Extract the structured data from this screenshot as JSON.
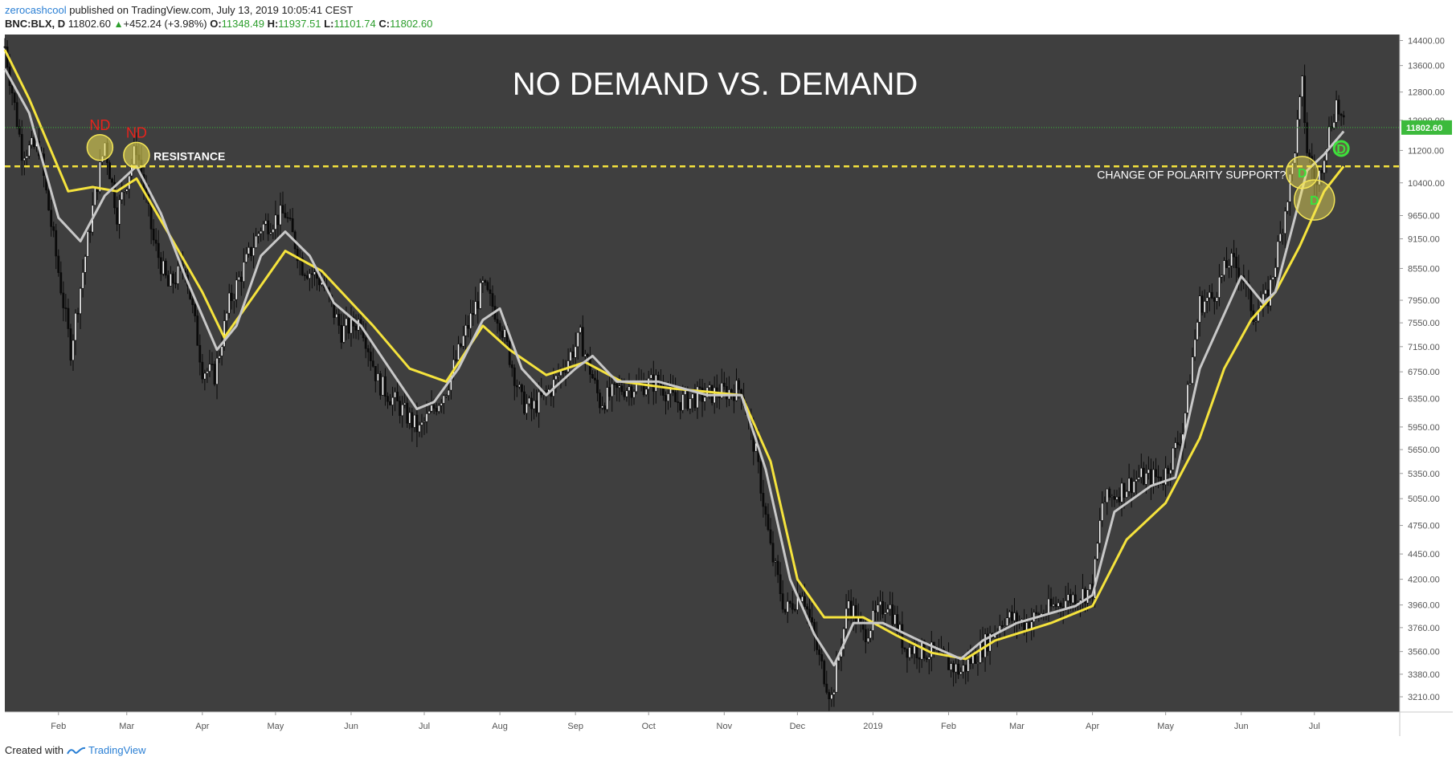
{
  "header": {
    "author": "zerocashcool",
    "published": " published on TradingView.com, July 13, 2019 10:05:41 CEST",
    "symbol": "BNC:BLX, D",
    "last": "11802.60",
    "change": "+452.24 (+3.98%)",
    "o_label": "O:",
    "o_value": "11348.49",
    "h_label": "H:",
    "h_value": "11937.51",
    "l_label": "L:",
    "l_value": "11101.74",
    "c_label": "C:",
    "c_value": "11802.60"
  },
  "footer": {
    "created_with": "Created with",
    "brand": "TradingView"
  },
  "colors": {
    "plot_bg": "#3f3f3f",
    "page_bg": "#ffffff",
    "candle": "#0a0a0a",
    "ema_fast": "#c8c8c8",
    "ema_slow": "#f5e33d",
    "nd_label": "#e8231c",
    "d_label": "#3ce03c",
    "annotation_circle": "#f3e556",
    "price_badge": "#3cba3c"
  },
  "chart_data": {
    "type": "candlestick",
    "title": "NO DEMAND VS. DEMAND",
    "x_range": [
      "2018-01-10",
      "2019-08-05"
    ],
    "y_range": [
      3100,
      14600
    ],
    "y_ticks": [
      "14400.00",
      "13600.00",
      "12800.00",
      "12000.00",
      "11200.00",
      "10400.00",
      "9650.00",
      "9150.00",
      "8550.00",
      "7950.00",
      "7550.00",
      "7150.00",
      "6750.00",
      "6350.00",
      "5950.00",
      "5650.00",
      "5350.00",
      "5050.00",
      "4750.00",
      "4450.00",
      "4200.00",
      "3960.00",
      "3760.00",
      "3560.00",
      "3380.00",
      "3210.00"
    ],
    "x_ticks": [
      {
        "date": "2018-02-01",
        "label": "Feb"
      },
      {
        "date": "2018-03-01",
        "label": "Mar"
      },
      {
        "date": "2018-04-01",
        "label": "Apr"
      },
      {
        "date": "2018-05-01",
        "label": "May"
      },
      {
        "date": "2018-06-01",
        "label": "Jun"
      },
      {
        "date": "2018-07-01",
        "label": "Jul"
      },
      {
        "date": "2018-08-01",
        "label": "Aug"
      },
      {
        "date": "2018-09-01",
        "label": "Sep"
      },
      {
        "date": "2018-10-01",
        "label": "Oct"
      },
      {
        "date": "2018-11-01",
        "label": "Nov"
      },
      {
        "date": "2018-12-01",
        "label": "Dec"
      },
      {
        "date": "2019-01-01",
        "label": "2019"
      },
      {
        "date": "2019-02-01",
        "label": "Feb"
      },
      {
        "date": "2019-03-01",
        "label": "Mar"
      },
      {
        "date": "2019-04-01",
        "label": "Apr"
      },
      {
        "date": "2019-05-01",
        "label": "May"
      },
      {
        "date": "2019-06-01",
        "label": "Jun"
      },
      {
        "date": "2019-07-01",
        "label": "Jul"
      }
    ],
    "price_path": [
      [
        "2018-01-10",
        14200
      ],
      [
        "2018-01-17",
        11200
      ],
      [
        "2018-01-24",
        11300
      ],
      [
        "2018-02-06",
        7100
      ],
      [
        "2018-02-15",
        9800
      ],
      [
        "2018-02-20",
        11400
      ],
      [
        "2018-02-25",
        9700
      ],
      [
        "2018-03-05",
        11300
      ],
      [
        "2018-03-12",
        9100
      ],
      [
        "2018-03-18",
        8200
      ],
      [
        "2018-03-25",
        8600
      ],
      [
        "2018-04-01",
        6800
      ],
      [
        "2018-04-06",
        6700
      ],
      [
        "2018-04-12",
        7900
      ],
      [
        "2018-04-20",
        8800
      ],
      [
        "2018-04-25",
        9400
      ],
      [
        "2018-05-05",
        9700
      ],
      [
        "2018-05-12",
        8600
      ],
      [
        "2018-05-20",
        8300
      ],
      [
        "2018-05-28",
        7400
      ],
      [
        "2018-06-05",
        7600
      ],
      [
        "2018-06-12",
        6600
      ],
      [
        "2018-06-24",
        6100
      ],
      [
        "2018-06-29",
        5900
      ],
      [
        "2018-07-10",
        6500
      ],
      [
        "2018-07-18",
        7400
      ],
      [
        "2018-07-25",
        8200
      ],
      [
        "2018-08-01",
        7600
      ],
      [
        "2018-08-10",
        6300
      ],
      [
        "2018-08-14",
        6200
      ],
      [
        "2018-08-22",
        6500
      ],
      [
        "2018-09-03",
        7300
      ],
      [
        "2018-09-11",
        6300
      ],
      [
        "2018-09-20",
        6500
      ],
      [
        "2018-10-05",
        6600
      ],
      [
        "2018-10-12",
        6300
      ],
      [
        "2018-10-25",
        6400
      ],
      [
        "2018-11-08",
        6500
      ],
      [
        "2018-11-14",
        5600
      ],
      [
        "2018-11-20",
        4500
      ],
      [
        "2018-11-26",
        3900
      ],
      [
        "2018-12-03",
        4100
      ],
      [
        "2018-12-10",
        3500
      ],
      [
        "2018-12-15",
        3200
      ],
      [
        "2018-12-22",
        4000
      ],
      [
        "2018-12-28",
        3700
      ],
      [
        "2019-01-07",
        4000
      ],
      [
        "2019-01-14",
        3600
      ],
      [
        "2019-01-25",
        3550
      ],
      [
        "2019-02-06",
        3400
      ],
      [
        "2019-02-15",
        3600
      ],
      [
        "2019-02-24",
        3850
      ],
      [
        "2019-03-05",
        3800
      ],
      [
        "2019-03-20",
        4000
      ],
      [
        "2019-04-01",
        4100
      ],
      [
        "2019-04-05",
        5000
      ],
      [
        "2019-04-20",
        5300
      ],
      [
        "2019-04-30",
        5300
      ],
      [
        "2019-05-08",
        5900
      ],
      [
        "2019-05-15",
        7900
      ],
      [
        "2019-05-20",
        8000
      ],
      [
        "2019-05-27",
        8700
      ],
      [
        "2019-06-01",
        8500
      ],
      [
        "2019-06-06",
        7700
      ],
      [
        "2019-06-12",
        8000
      ],
      [
        "2019-06-17",
        9200
      ],
      [
        "2019-06-22",
        10800
      ],
      [
        "2019-06-26",
        13000
      ],
      [
        "2019-06-28",
        11200
      ],
      [
        "2019-07-02",
        10300
      ],
      [
        "2019-07-05",
        11200
      ],
      [
        "2019-07-10",
        12500
      ],
      [
        "2019-07-13",
        11800
      ]
    ],
    "ema_fast": [
      [
        "2018-01-10",
        13500
      ],
      [
        "2018-01-20",
        12200
      ],
      [
        "2018-02-01",
        9600
      ],
      [
        "2018-02-10",
        9100
      ],
      [
        "2018-02-20",
        10100
      ],
      [
        "2018-03-05",
        10800
      ],
      [
        "2018-03-15",
        9700
      ],
      [
        "2018-03-25",
        8400
      ],
      [
        "2018-04-07",
        7100
      ],
      [
        "2018-04-15",
        7500
      ],
      [
        "2018-04-25",
        8800
      ],
      [
        "2018-05-05",
        9300
      ],
      [
        "2018-05-15",
        8800
      ],
      [
        "2018-05-25",
        7900
      ],
      [
        "2018-06-05",
        7500
      ],
      [
        "2018-06-15",
        6900
      ],
      [
        "2018-06-28",
        6200
      ],
      [
        "2018-07-05",
        6300
      ],
      [
        "2018-07-15",
        6800
      ],
      [
        "2018-07-25",
        7600
      ],
      [
        "2018-08-01",
        7800
      ],
      [
        "2018-08-10",
        6800
      ],
      [
        "2018-08-20",
        6400
      ],
      [
        "2018-09-01",
        6800
      ],
      [
        "2018-09-08",
        7000
      ],
      [
        "2018-09-18",
        6600
      ],
      [
        "2018-10-05",
        6600
      ],
      [
        "2018-10-25",
        6400
      ],
      [
        "2018-11-08",
        6400
      ],
      [
        "2018-11-18",
        5400
      ],
      [
        "2018-11-28",
        4200
      ],
      [
        "2018-12-08",
        3700
      ],
      [
        "2018-12-16",
        3450
      ],
      [
        "2018-12-24",
        3800
      ],
      [
        "2019-01-05",
        3800
      ],
      [
        "2019-01-20",
        3650
      ],
      [
        "2019-02-06",
        3500
      ],
      [
        "2019-02-15",
        3650
      ],
      [
        "2019-03-01",
        3800
      ],
      [
        "2019-03-25",
        3950
      ],
      [
        "2019-04-01",
        4050
      ],
      [
        "2019-04-10",
        4900
      ],
      [
        "2019-04-25",
        5200
      ],
      [
        "2019-05-05",
        5300
      ],
      [
        "2019-05-15",
        6800
      ],
      [
        "2019-05-25",
        7700
      ],
      [
        "2019-06-01",
        8400
      ],
      [
        "2019-06-10",
        7900
      ],
      [
        "2019-06-15",
        8100
      ],
      [
        "2019-06-22",
        9400
      ],
      [
        "2019-06-28",
        10700
      ],
      [
        "2019-07-05",
        11100
      ],
      [
        "2019-07-13",
        11700
      ]
    ],
    "ema_slow": [
      [
        "2018-01-10",
        14100
      ],
      [
        "2018-01-20",
        12600
      ],
      [
        "2018-02-05",
        10200
      ],
      [
        "2018-02-15",
        10300
      ],
      [
        "2018-02-25",
        10200
      ],
      [
        "2018-03-05",
        10500
      ],
      [
        "2018-03-20",
        9100
      ],
      [
        "2018-04-01",
        8100
      ],
      [
        "2018-04-10",
        7300
      ],
      [
        "2018-04-20",
        7900
      ],
      [
        "2018-05-05",
        8900
      ],
      [
        "2018-05-20",
        8500
      ],
      [
        "2018-06-10",
        7500
      ],
      [
        "2018-06-25",
        6800
      ],
      [
        "2018-07-10",
        6600
      ],
      [
        "2018-07-25",
        7500
      ],
      [
        "2018-08-05",
        7100
      ],
      [
        "2018-08-20",
        6700
      ],
      [
        "2018-09-05",
        6900
      ],
      [
        "2018-09-20",
        6600
      ],
      [
        "2018-10-10",
        6500
      ],
      [
        "2018-11-08",
        6400
      ],
      [
        "2018-11-20",
        5500
      ],
      [
        "2018-12-01",
        4200
      ],
      [
        "2018-12-12",
        3850
      ],
      [
        "2018-12-28",
        3850
      ],
      [
        "2019-01-10",
        3700
      ],
      [
        "2019-01-25",
        3550
      ],
      [
        "2019-02-08",
        3500
      ],
      [
        "2019-02-20",
        3650
      ],
      [
        "2019-03-15",
        3800
      ],
      [
        "2019-04-01",
        3950
      ],
      [
        "2019-04-15",
        4600
      ],
      [
        "2019-05-01",
        5000
      ],
      [
        "2019-05-15",
        5800
      ],
      [
        "2019-05-25",
        6800
      ],
      [
        "2019-06-05",
        7600
      ],
      [
        "2019-06-15",
        8100
      ],
      [
        "2019-06-25",
        9000
      ],
      [
        "2019-07-05",
        10200
      ],
      [
        "2019-07-13",
        10800
      ]
    ],
    "resistance_level": 10800,
    "last_price_level": 11802.6,
    "last_price_label": "11802.60",
    "annotations": {
      "resistance": {
        "text": "RESISTANCE",
        "date": "2018-03-12",
        "value": 10950
      },
      "polarity": {
        "text": "CHANGE OF POLARITY SUPPORT?",
        "date": "2019-06-22",
        "value": 10500
      },
      "nd_markers": [
        {
          "text": "ND",
          "date": "2018-02-18",
          "value": 11400
        },
        {
          "text": "ND",
          "date": "2018-03-05",
          "value": 11200
        }
      ],
      "d_markers": [
        {
          "text": "D",
          "date": "2019-06-26",
          "value": 10650
        },
        {
          "text": "D",
          "date": "2019-07-01",
          "value": 10000
        },
        {
          "text": "D",
          "date": "2019-07-12",
          "value": 11250
        }
      ]
    }
  }
}
